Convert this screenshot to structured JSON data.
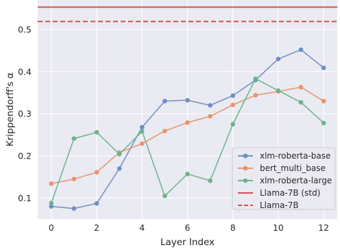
{
  "chart_data": {
    "type": "line",
    "xlabel": "Layer Index",
    "ylabel": "Krippendorff's α",
    "xlim": [
      -0.6,
      12.6
    ],
    "ylim": [
      0.05,
      0.57
    ],
    "xticks": [
      0,
      2,
      4,
      6,
      8,
      10,
      12
    ],
    "yticks": [
      0.1,
      0.2,
      0.3,
      0.4,
      0.5
    ],
    "grid": true,
    "legend_position": "lower-right",
    "x": [
      0,
      1,
      2,
      3,
      4,
      5,
      6,
      7,
      8,
      9,
      10,
      11,
      12
    ],
    "series": [
      {
        "name": "xlm-roberta-base",
        "color": "#6f8dc3",
        "marker": true,
        "values": [
          0.08,
          0.075,
          0.087,
          0.17,
          0.268,
          0.33,
          0.332,
          0.32,
          0.343,
          0.38,
          0.43,
          0.452,
          0.409
        ]
      },
      {
        "name": "bert_multi_base",
        "color": "#e8946c",
        "marker": true,
        "values": [
          0.134,
          0.145,
          0.161,
          0.208,
          0.229,
          0.259,
          0.279,
          0.294,
          0.321,
          0.344,
          0.353,
          0.363,
          0.33
        ]
      },
      {
        "name": "xlm-roberta-large",
        "color": "#6db38a",
        "marker": true,
        "values": [
          0.088,
          0.241,
          0.256,
          0.204,
          0.258,
          0.105,
          0.157,
          0.141,
          0.275,
          0.383,
          0.355,
          0.327,
          0.278
        ]
      }
    ],
    "reference_lines": [
      {
        "name": "Llama-7B (std)",
        "value": 0.553,
        "color": "#d44e4e",
        "style": "solid"
      },
      {
        "name": "Llama-7B",
        "value": 0.519,
        "color": "#d44e4e",
        "style": "dashed"
      }
    ]
  },
  "colors": {
    "plot_background": "#eaeaf2",
    "grid": "#ffffff"
  }
}
